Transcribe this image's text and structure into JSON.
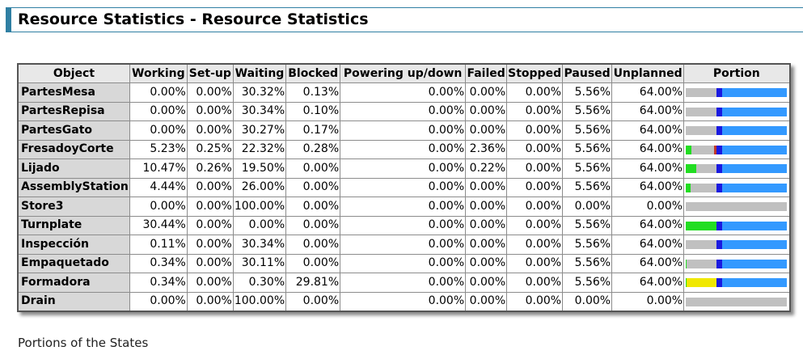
{
  "title": "Resource Statistics - Resource Statistics",
  "caption": "Portions of the States",
  "columns": [
    "Object",
    "Working",
    "Set-up",
    "Waiting",
    "Blocked",
    "Powering up/down",
    "Failed",
    "Stopped",
    "Paused",
    "Unplanned",
    "Portion"
  ],
  "colors": {
    "working": "#22dd22",
    "setup": "#d8d84a",
    "waiting": "#c0c0c0",
    "blocked": "#f0e800",
    "failed": "#c0392b",
    "paused": "#1a1ae0",
    "unplanned": "#3399ff",
    "title_accent": "#2f7fa3"
  },
  "rows": [
    {
      "name": "PartesMesa",
      "working": "0.00%",
      "setup": "0.00%",
      "waiting": "30.32%",
      "blocked": "0.13%",
      "powering": "0.00%",
      "failed": "0.00%",
      "stopped": "0.00%",
      "paused": "5.56%",
      "unplanned": "64.00%"
    },
    {
      "name": "PartesRepisa",
      "working": "0.00%",
      "setup": "0.00%",
      "waiting": "30.34%",
      "blocked": "0.10%",
      "powering": "0.00%",
      "failed": "0.00%",
      "stopped": "0.00%",
      "paused": "5.56%",
      "unplanned": "64.00%"
    },
    {
      "name": "PartesGato",
      "working": "0.00%",
      "setup": "0.00%",
      "waiting": "30.27%",
      "blocked": "0.17%",
      "powering": "0.00%",
      "failed": "0.00%",
      "stopped": "0.00%",
      "paused": "5.56%",
      "unplanned": "64.00%"
    },
    {
      "name": "FresadoyCorte",
      "working": "5.23%",
      "setup": "0.25%",
      "waiting": "22.32%",
      "blocked": "0.28%",
      "powering": "0.00%",
      "failed": "2.36%",
      "stopped": "0.00%",
      "paused": "5.56%",
      "unplanned": "64.00%"
    },
    {
      "name": "Lijado",
      "working": "10.47%",
      "setup": "0.26%",
      "waiting": "19.50%",
      "blocked": "0.00%",
      "powering": "0.00%",
      "failed": "0.22%",
      "stopped": "0.00%",
      "paused": "5.56%",
      "unplanned": "64.00%"
    },
    {
      "name": "AssemblyStation",
      "working": "4.44%",
      "setup": "0.00%",
      "waiting": "26.00%",
      "blocked": "0.00%",
      "powering": "0.00%",
      "failed": "0.00%",
      "stopped": "0.00%",
      "paused": "5.56%",
      "unplanned": "64.00%"
    },
    {
      "name": "Store3",
      "working": "0.00%",
      "setup": "0.00%",
      "waiting": "100.00%",
      "blocked": "0.00%",
      "powering": "0.00%",
      "failed": "0.00%",
      "stopped": "0.00%",
      "paused": "0.00%",
      "unplanned": "0.00%"
    },
    {
      "name": "Turnplate",
      "working": "30.44%",
      "setup": "0.00%",
      "waiting": "0.00%",
      "blocked": "0.00%",
      "powering": "0.00%",
      "failed": "0.00%",
      "stopped": "0.00%",
      "paused": "5.56%",
      "unplanned": "64.00%"
    },
    {
      "name": "Inspección",
      "working": "0.11%",
      "setup": "0.00%",
      "waiting": "30.34%",
      "blocked": "0.00%",
      "powering": "0.00%",
      "failed": "0.00%",
      "stopped": "0.00%",
      "paused": "5.56%",
      "unplanned": "64.00%"
    },
    {
      "name": "Empaquetado",
      "working": "0.34%",
      "setup": "0.00%",
      "waiting": "30.11%",
      "blocked": "0.00%",
      "powering": "0.00%",
      "failed": "0.00%",
      "stopped": "0.00%",
      "paused": "5.56%",
      "unplanned": "64.00%"
    },
    {
      "name": "Formadora",
      "working": "0.34%",
      "setup": "0.00%",
      "waiting": "0.30%",
      "blocked": "29.81%",
      "powering": "0.00%",
      "failed": "0.00%",
      "stopped": "0.00%",
      "paused": "5.56%",
      "unplanned": "64.00%"
    },
    {
      "name": "Drain",
      "working": "0.00%",
      "setup": "0.00%",
      "waiting": "100.00%",
      "blocked": "0.00%",
      "powering": "0.00%",
      "failed": "0.00%",
      "stopped": "0.00%",
      "paused": "0.00%",
      "unplanned": "0.00%"
    }
  ]
}
